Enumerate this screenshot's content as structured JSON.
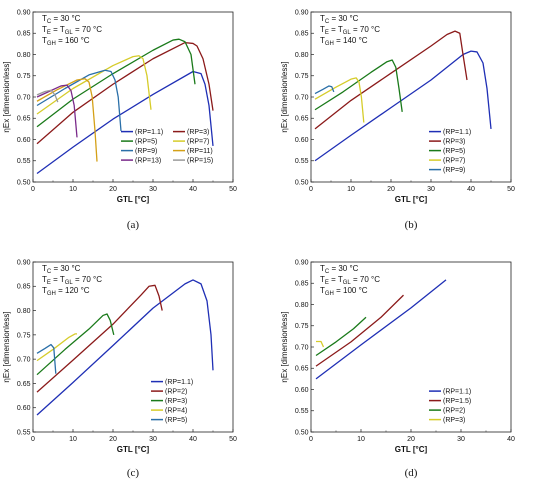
{
  "chart_data": [
    {
      "type": "line",
      "panel_label": "(a)",
      "xlabel": "GTL [°C]",
      "ylabel": "ηEx [dimensionless]",
      "xlim": [
        0,
        50
      ],
      "ylim": [
        0.5,
        0.9
      ],
      "xticks": [
        "0",
        "10",
        "20",
        "30",
        "40",
        "50"
      ],
      "yticks": [
        "0.50",
        "0.55",
        "0.60",
        "0.65",
        "0.70",
        "0.75",
        "0.80",
        "0.85",
        "0.90"
      ],
      "annotations": [
        "T",
        "C",
        " = 30 °C",
        "T",
        "E",
        " = T",
        "GL",
        " = 70 °C",
        "T",
        "GH",
        " = 160 °C"
      ],
      "legend_cols": 2,
      "series": [
        {
          "name": "(RP=1.1)",
          "color": "#1f2fb5",
          "points": [
            [
              1,
              0.52
            ],
            [
              10,
              0.582
            ],
            [
              20,
              0.648
            ],
            [
              30,
              0.706
            ],
            [
              40,
              0.76
            ],
            [
              42,
              0.755
            ],
            [
              43,
              0.73
            ],
            [
              44,
              0.68
            ],
            [
              45,
              0.585
            ]
          ]
        },
        {
          "name": "(RP=3)",
          "color": "#8b1a1a",
          "points": [
            [
              1,
              0.59
            ],
            [
              10,
              0.664
            ],
            [
              20,
              0.73
            ],
            [
              30,
              0.79
            ],
            [
              38,
              0.828
            ],
            [
              40,
              0.826
            ],
            [
              41,
              0.82
            ],
            [
              42.5,
              0.79
            ],
            [
              44,
              0.73
            ],
            [
              45,
              0.668
            ]
          ]
        },
        {
          "name": "(RP=5)",
          "color": "#1a7a1a",
          "points": [
            [
              1,
              0.63
            ],
            [
              10,
              0.695
            ],
            [
              20,
              0.755
            ],
            [
              30,
              0.81
            ],
            [
              35,
              0.834
            ],
            [
              36.5,
              0.836
            ],
            [
              38,
              0.83
            ],
            [
              39.5,
              0.8
            ],
            [
              40.5,
              0.73
            ]
          ]
        },
        {
          "name": "(RP=7)",
          "color": "#d6cc2a",
          "points": [
            [
              1,
              0.66
            ],
            [
              10,
              0.72
            ],
            [
              20,
              0.774
            ],
            [
              25,
              0.795
            ],
            [
              26.5,
              0.797
            ],
            [
              27.5,
              0.79
            ],
            [
              28.5,
              0.75
            ],
            [
              29.5,
              0.67
            ]
          ]
        },
        {
          "name": "(RP=9)",
          "color": "#2a6fa8",
          "points": [
            [
              1,
              0.68
            ],
            [
              8,
              0.72
            ],
            [
              14,
              0.752
            ],
            [
              18,
              0.763
            ],
            [
              19.5,
              0.76
            ],
            [
              20.5,
              0.74
            ],
            [
              21.3,
              0.7
            ],
            [
              22,
              0.62
            ]
          ]
        },
        {
          "name": "(RP=11)",
          "color": "#d4a017",
          "points": [
            [
              1,
              0.69
            ],
            [
              6,
              0.717
            ],
            [
              11,
              0.74
            ],
            [
              13,
              0.743
            ],
            [
              14,
              0.735
            ],
            [
              14.8,
              0.7
            ],
            [
              15.5,
              0.62
            ],
            [
              16,
              0.548
            ]
          ]
        },
        {
          "name": "(RP=13)",
          "color": "#7a2a8a",
          "points": [
            [
              1,
              0.7
            ],
            [
              4,
              0.713
            ],
            [
              7,
              0.726
            ],
            [
              8.5,
              0.728
            ],
            [
              9.5,
              0.715
            ],
            [
              10.3,
              0.68
            ],
            [
              11,
              0.605
            ]
          ]
        },
        {
          "name": "(RP=15)",
          "color": "#9a9a9a",
          "points": [
            [
              1,
              0.705
            ],
            [
              3,
              0.713
            ],
            [
              4.5,
              0.716
            ],
            [
              5.5,
              0.705
            ],
            [
              6.2,
              0.688
            ]
          ]
        }
      ]
    },
    {
      "type": "line",
      "panel_label": "(b)",
      "xlabel": "GTL [°C]",
      "ylabel": "ηEx [dimensionless]",
      "xlim": [
        0,
        50
      ],
      "ylim": [
        0.5,
        0.9
      ],
      "xticks": [
        "0",
        "10",
        "20",
        "30",
        "40",
        "50"
      ],
      "yticks": [
        "0.50",
        "0.55",
        "0.60",
        "0.65",
        "0.70",
        "0.75",
        "0.80",
        "0.85",
        "0.90"
      ],
      "annotations": [
        "T",
        "C",
        " = 30 °C",
        "T",
        "E",
        " = T",
        "GL",
        " = 70 °C",
        "T",
        "GH",
        " = 140 °C"
      ],
      "legend_cols": 1,
      "series": [
        {
          "name": "(RP=1.1)",
          "color": "#1f2fb5",
          "points": [
            [
              1,
              0.55
            ],
            [
              10,
              0.61
            ],
            [
              20,
              0.675
            ],
            [
              30,
              0.74
            ],
            [
              38,
              0.8
            ],
            [
              40,
              0.808
            ],
            [
              41.5,
              0.806
            ],
            [
              43,
              0.78
            ],
            [
              44,
              0.72
            ],
            [
              45,
              0.625
            ]
          ]
        },
        {
          "name": "(RP=3)",
          "color": "#8b1a1a",
          "points": [
            [
              1,
              0.625
            ],
            [
              10,
              0.692
            ],
            [
              20,
              0.756
            ],
            [
              30,
              0.82
            ],
            [
              34,
              0.847
            ],
            [
              36,
              0.855
            ],
            [
              37.2,
              0.85
            ],
            [
              38,
              0.8
            ],
            [
              39,
              0.74
            ]
          ]
        },
        {
          "name": "(RP=5)",
          "color": "#1a7a1a",
          "points": [
            [
              1,
              0.67
            ],
            [
              8,
              0.712
            ],
            [
              15,
              0.758
            ],
            [
              19,
              0.783
            ],
            [
              20.3,
              0.787
            ],
            [
              21.2,
              0.77
            ],
            [
              22,
              0.72
            ],
            [
              22.8,
              0.665
            ]
          ]
        },
        {
          "name": "(RP=7)",
          "color": "#d6cc2a",
          "points": [
            [
              1,
              0.695
            ],
            [
              6,
              0.722
            ],
            [
              10,
              0.742
            ],
            [
              11.3,
              0.745
            ],
            [
              12,
              0.735
            ],
            [
              12.6,
              0.7
            ],
            [
              13.2,
              0.64
            ]
          ]
        },
        {
          "name": "(RP=9)",
          "color": "#2a6fa8",
          "points": [
            [
              1,
              0.708
            ],
            [
              3,
              0.718
            ],
            [
              4.5,
              0.726
            ],
            [
              5.2,
              0.724
            ],
            [
              5.7,
              0.712
            ]
          ]
        }
      ]
    },
    {
      "type": "line",
      "panel_label": "(c)",
      "xlabel": "GTL [°C]",
      "ylabel": "ηEx [dimensionless]",
      "xlim": [
        0,
        50
      ],
      "ylim": [
        0.55,
        0.9
      ],
      "xticks": [
        "0",
        "10",
        "20",
        "30",
        "40",
        "50"
      ],
      "yticks": [
        "0.55",
        "0.60",
        "0.65",
        "0.70",
        "0.75",
        "0.80",
        "0.85",
        "0.90"
      ],
      "annotations": [
        "T",
        "C",
        " = 30 °C",
        "T",
        "E",
        " = T",
        "GL",
        " = 70 °C",
        "T",
        "GH",
        " = 120 °C"
      ],
      "legend_cols": 1,
      "series": [
        {
          "name": "(RP=1.1)",
          "color": "#1f2fb5",
          "points": [
            [
              1,
              0.585
            ],
            [
              10,
              0.652
            ],
            [
              20,
              0.728
            ],
            [
              30,
              0.805
            ],
            [
              38,
              0.855
            ],
            [
              40,
              0.863
            ],
            [
              42,
              0.855
            ],
            [
              43.5,
              0.82
            ],
            [
              44.5,
              0.75
            ],
            [
              45,
              0.677
            ]
          ]
        },
        {
          "name": "(RP=2)",
          "color": "#8b1a1a",
          "points": [
            [
              1,
              0.632
            ],
            [
              10,
              0.698
            ],
            [
              20,
              0.772
            ],
            [
              27,
              0.832
            ],
            [
              29,
              0.85
            ],
            [
              30.5,
              0.852
            ],
            [
              31.5,
              0.83
            ],
            [
              32.3,
              0.8
            ]
          ]
        },
        {
          "name": "(RP=3)",
          "color": "#1a7a1a",
          "points": [
            [
              1,
              0.668
            ],
            [
              8,
              0.72
            ],
            [
              14,
              0.762
            ],
            [
              17.5,
              0.79
            ],
            [
              18.5,
              0.793
            ],
            [
              19.3,
              0.78
            ],
            [
              20.2,
              0.75
            ]
          ]
        },
        {
          "name": "(RP=4)",
          "color": "#d6cc2a",
          "points": [
            [
              1,
              0.697
            ],
            [
              5,
              0.72
            ],
            [
              9,
              0.745
            ],
            [
              10.5,
              0.752
            ],
            [
              11,
              0.752
            ]
          ]
        },
        {
          "name": "(RP=5)",
          "color": "#2a6fa8",
          "points": [
            [
              1,
              0.712
            ],
            [
              3,
              0.722
            ],
            [
              4.5,
              0.73
            ],
            [
              5.2,
              0.723
            ],
            [
              5.7,
              0.67
            ]
          ]
        }
      ]
    },
    {
      "type": "line",
      "panel_label": "(d)",
      "xlabel": "GTL [°C]",
      "ylabel": "ηEx [dimensionless]",
      "xlim": [
        0,
        40
      ],
      "ylim": [
        0.5,
        0.9
      ],
      "xticks": [
        "0",
        "10",
        "20",
        "30",
        "40"
      ],
      "yticks": [
        "0.50",
        "0.55",
        "0.60",
        "0.65",
        "0.70",
        "0.75",
        "0.80",
        "0.85",
        "0.90"
      ],
      "annotations": [
        "T",
        "C",
        " = 30 °C",
        "T",
        "E",
        " = T",
        "GL",
        " = 70 °C",
        "T",
        "GH",
        " = 100 °C"
      ],
      "legend_cols": 1,
      "series": [
        {
          "name": "(RP=1.1)",
          "color": "#1f2fb5",
          "points": [
            [
              1,
              0.625
            ],
            [
              10,
              0.705
            ],
            [
              20,
              0.792
            ],
            [
              27,
              0.858
            ]
          ]
        },
        {
          "name": "(RP=1.5)",
          "color": "#8b1a1a",
          "points": [
            [
              1,
              0.655
            ],
            [
              8,
              0.712
            ],
            [
              14,
              0.77
            ],
            [
              18.5,
              0.822
            ]
          ]
        },
        {
          "name": "(RP=2)",
          "color": "#1a7a1a",
          "points": [
            [
              1,
              0.68
            ],
            [
              5,
              0.712
            ],
            [
              8.5,
              0.743
            ],
            [
              11,
              0.77
            ]
          ]
        },
        {
          "name": "(RP=3)",
          "color": "#d6cc2a",
          "points": [
            [
              1,
              0.713
            ],
            [
              2,
              0.713
            ],
            [
              2.5,
              0.7
            ]
          ]
        }
      ]
    }
  ]
}
